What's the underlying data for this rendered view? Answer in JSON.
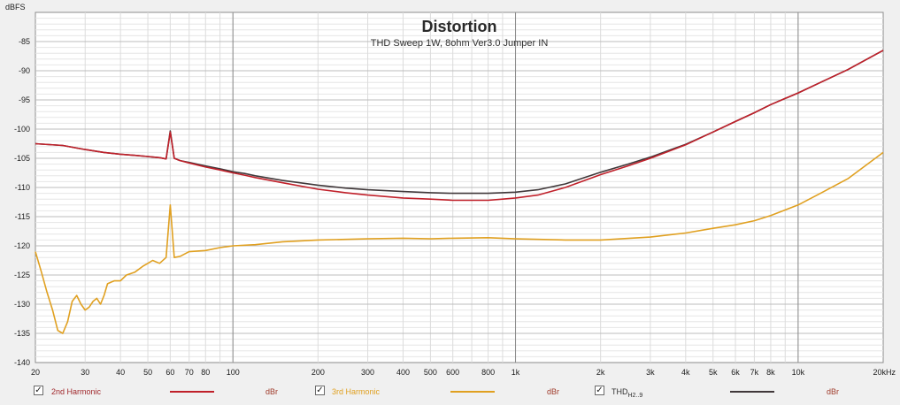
{
  "header": {
    "y_unit": "dBFS",
    "x_unit_max_label": "20kHz"
  },
  "chart_data": {
    "type": "line",
    "title": "Distortion",
    "subtitle": "THD Sweep 1W, 8ohm Ver3.0 Jumper IN",
    "xlabel": "",
    "ylabel": "dBFS",
    "xscale": "log",
    "xlim": [
      20,
      20000
    ],
    "ylim": [
      -140,
      -80
    ],
    "grid": true,
    "x_ticks": [
      {
        "v": 20,
        "label": "20"
      },
      {
        "v": 30,
        "label": "30"
      },
      {
        "v": 40,
        "label": "40"
      },
      {
        "v": 50,
        "label": "50"
      },
      {
        "v": 60,
        "label": "60"
      },
      {
        "v": 70,
        "label": "70"
      },
      {
        "v": 80,
        "label": "80"
      },
      {
        "v": 100,
        "label": "100"
      },
      {
        "v": 200,
        "label": "200"
      },
      {
        "v": 300,
        "label": "300"
      },
      {
        "v": 400,
        "label": "400"
      },
      {
        "v": 500,
        "label": "500"
      },
      {
        "v": 600,
        "label": "600"
      },
      {
        "v": 800,
        "label": "800"
      },
      {
        "v": 1000,
        "label": "1k"
      },
      {
        "v": 2000,
        "label": "2k"
      },
      {
        "v": 3000,
        "label": "3k"
      },
      {
        "v": 4000,
        "label": "4k"
      },
      {
        "v": 5000,
        "label": "5k"
      },
      {
        "v": 6000,
        "label": "6k"
      },
      {
        "v": 7000,
        "label": "7k"
      },
      {
        "v": 8000,
        "label": "8k"
      },
      {
        "v": 10000,
        "label": "10k"
      },
      {
        "v": 20000,
        "label": "20kHz"
      }
    ],
    "y_ticks": [
      {
        "v": -85,
        "label": "-85"
      },
      {
        "v": -90,
        "label": "-90"
      },
      {
        "v": -95,
        "label": "-95"
      },
      {
        "v": -100,
        "label": "-100"
      },
      {
        "v": -105,
        "label": "-105"
      },
      {
        "v": -110,
        "label": "-110"
      },
      {
        "v": -115,
        "label": "-115"
      },
      {
        "v": -120,
        "label": "-120"
      },
      {
        "v": -125,
        "label": "-125"
      },
      {
        "v": -130,
        "label": "-130"
      },
      {
        "v": -135,
        "label": "-135"
      },
      {
        "v": -140,
        "label": "-140"
      }
    ],
    "series": [
      {
        "name": "2nd Harmonic",
        "color": "#c0202a",
        "x": [
          20,
          25,
          30,
          35,
          40,
          45,
          50,
          55,
          58,
          60,
          62,
          65,
          70,
          80,
          90,
          100,
          110,
          120,
          150,
          200,
          250,
          300,
          400,
          500,
          600,
          700,
          800,
          900,
          1000,
          1200,
          1500,
          2000,
          2500,
          3000,
          4000,
          5000,
          6000,
          7000,
          8000,
          10000,
          12000,
          15000,
          20000
        ],
        "y": [
          -102.5,
          -102.8,
          -103.5,
          -104.0,
          -104.3,
          -104.5,
          -104.7,
          -104.9,
          -105.1,
          -100.5,
          -105.0,
          -105.4,
          -105.8,
          -106.5,
          -107.0,
          -107.5,
          -107.9,
          -108.3,
          -109.2,
          -110.3,
          -110.9,
          -111.3,
          -111.8,
          -112.0,
          -112.2,
          -112.2,
          -112.2,
          -112.0,
          -111.8,
          -111.3,
          -110.0,
          -107.8,
          -106.3,
          -105.0,
          -102.7,
          -100.5,
          -98.7,
          -97.2,
          -95.8,
          -93.8,
          -92.0,
          -89.8,
          -86.5
        ]
      },
      {
        "name": "3rd Harmonic",
        "color": "#e0a020",
        "x": [
          20,
          21,
          22,
          23,
          24,
          25,
          26,
          27,
          28,
          29,
          30,
          31,
          32,
          33,
          34,
          35,
          36,
          38,
          40,
          42,
          45,
          48,
          50,
          52,
          55,
          58,
          60,
          62,
          65,
          70,
          80,
          90,
          100,
          120,
          150,
          200,
          300,
          400,
          500,
          600,
          800,
          1000,
          1500,
          2000,
          3000,
          4000,
          5000,
          6000,
          7000,
          8000,
          10000,
          12000,
          15000,
          20000
        ],
        "y": [
          -121.0,
          -124.5,
          -128.0,
          -131.0,
          -134.5,
          -135.0,
          -133.0,
          -129.5,
          -128.5,
          -130.0,
          -131.0,
          -130.5,
          -129.5,
          -129.0,
          -130.0,
          -128.5,
          -126.5,
          -126.0,
          -126.0,
          -125.0,
          -124.5,
          -123.5,
          -123.0,
          -122.5,
          -123.0,
          -122.0,
          -113.0,
          -122.0,
          -121.8,
          -121.0,
          -120.8,
          -120.3,
          -120.0,
          -119.8,
          -119.3,
          -119.0,
          -118.8,
          -118.7,
          -118.8,
          -118.7,
          -118.6,
          -118.8,
          -119.0,
          -119.0,
          -118.5,
          -117.8,
          -117.0,
          -116.4,
          -115.7,
          -114.8,
          -113.0,
          -111.0,
          -108.5,
          -104.0
        ]
      },
      {
        "name": "THD",
        "name_sub": "H2..9",
        "color": "#40383a",
        "x": [
          20,
          25,
          30,
          35,
          40,
          45,
          50,
          55,
          58,
          60,
          62,
          65,
          70,
          80,
          90,
          100,
          110,
          120,
          150,
          200,
          250,
          300,
          400,
          500,
          600,
          700,
          800,
          900,
          1000,
          1200,
          1500,
          2000,
          2500,
          3000,
          4000,
          5000,
          6000,
          7000,
          8000,
          10000,
          12000,
          15000,
          20000
        ],
        "y": [
          -102.5,
          -102.8,
          -103.5,
          -104.0,
          -104.3,
          -104.5,
          -104.7,
          -104.9,
          -105.1,
          -100.3,
          -105.0,
          -105.4,
          -105.7,
          -106.3,
          -106.8,
          -107.3,
          -107.6,
          -108.0,
          -108.8,
          -109.6,
          -110.1,
          -110.4,
          -110.7,
          -110.9,
          -111.0,
          -111.0,
          -111.0,
          -110.9,
          -110.8,
          -110.4,
          -109.4,
          -107.4,
          -106.0,
          -104.8,
          -102.6,
          -100.5,
          -98.7,
          -97.2,
          -95.8,
          -93.8,
          -92.0,
          -89.8,
          -86.5
        ]
      }
    ]
  },
  "legend": [
    {
      "checked": "✓",
      "label": "2nd Harmonic",
      "label_sub": "",
      "unit": "dBr",
      "color": "#c0202a",
      "text_color": "#a0282c"
    },
    {
      "checked": "✓",
      "label": "3rd Harmonic",
      "label_sub": "",
      "unit": "dBr",
      "color": "#e0a020",
      "text_color": "#e0a020"
    },
    {
      "checked": "✓",
      "label": "THD",
      "label_sub": "H2..9",
      "unit": "dBr",
      "color": "#40383a",
      "text_color": "#303030"
    }
  ]
}
